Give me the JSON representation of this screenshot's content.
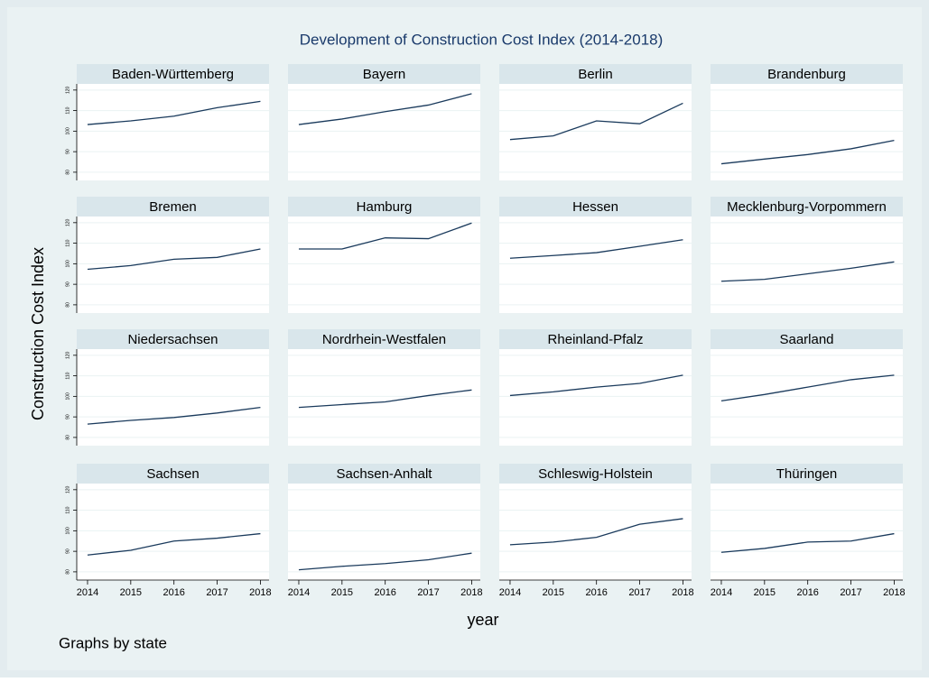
{
  "chart_data": {
    "type": "line",
    "title": "Development of Construction Cost Index (2014-2018)",
    "xlabel": "year",
    "ylabel": "Construction Cost Index",
    "note": "Graphs by state",
    "x": [
      2014,
      2015,
      2016,
      2017,
      2018
    ],
    "xlim": [
      2013.75,
      2018.2
    ],
    "xticks": [
      2014,
      2015,
      2016,
      2017,
      2018
    ],
    "ylim": [
      76,
      123
    ],
    "yticks": [
      80,
      90,
      100,
      110,
      120
    ],
    "grid": true,
    "color": "#1a3a5c",
    "series": [
      {
        "name": "Baden-Württemberg",
        "values": [
          103.2,
          105,
          107.3,
          111.4,
          114.5
        ]
      },
      {
        "name": "Bayern",
        "values": [
          103.2,
          105.9,
          109.5,
          112.7,
          118.2
        ]
      },
      {
        "name": "Berlin",
        "values": [
          95.9,
          97.7,
          105,
          103.6,
          113.6
        ]
      },
      {
        "name": "Brandenburg",
        "values": [
          84.1,
          86.4,
          88.6,
          91.4,
          95.5
        ]
      },
      {
        "name": "Bremen",
        "values": [
          97.3,
          99.1,
          102.2,
          103.1,
          107.2
        ]
      },
      {
        "name": "Hamburg",
        "values": [
          107.2,
          107.2,
          112.6,
          112.2,
          119.8
        ]
      },
      {
        "name": "Hessen",
        "values": [
          102.7,
          104,
          105.4,
          108.5,
          111.7
        ]
      },
      {
        "name": "Mecklenburg-Vorpommern",
        "values": [
          91.5,
          92.4,
          95.1,
          97.8,
          100.9
        ]
      },
      {
        "name": "Niedersachsen",
        "values": [
          86.5,
          88.3,
          89.7,
          91.9,
          94.6
        ]
      },
      {
        "name": "Nordrhein-Westfalen",
        "values": [
          94.6,
          96,
          97.3,
          100.4,
          103.1
        ]
      },
      {
        "name": "Rheinland-Pfalz",
        "values": [
          100.4,
          102.2,
          104.5,
          106.3,
          110.3
        ]
      },
      {
        "name": "Saarland",
        "values": [
          97.8,
          100.9,
          104.5,
          108.1,
          110.3
        ]
      },
      {
        "name": "Sachsen",
        "values": [
          88.2,
          90.5,
          95,
          96.4,
          98.6
        ]
      },
      {
        "name": "Sachsen-Anhalt",
        "values": [
          81,
          82.7,
          84,
          85.9,
          89.1
        ]
      },
      {
        "name": "Schleswig-Holstein",
        "values": [
          93.2,
          94.5,
          96.8,
          103.2,
          105.9
        ]
      },
      {
        "name": "Thüringen",
        "values": [
          89.5,
          91.4,
          94.5,
          95,
          98.6
        ]
      }
    ]
  }
}
